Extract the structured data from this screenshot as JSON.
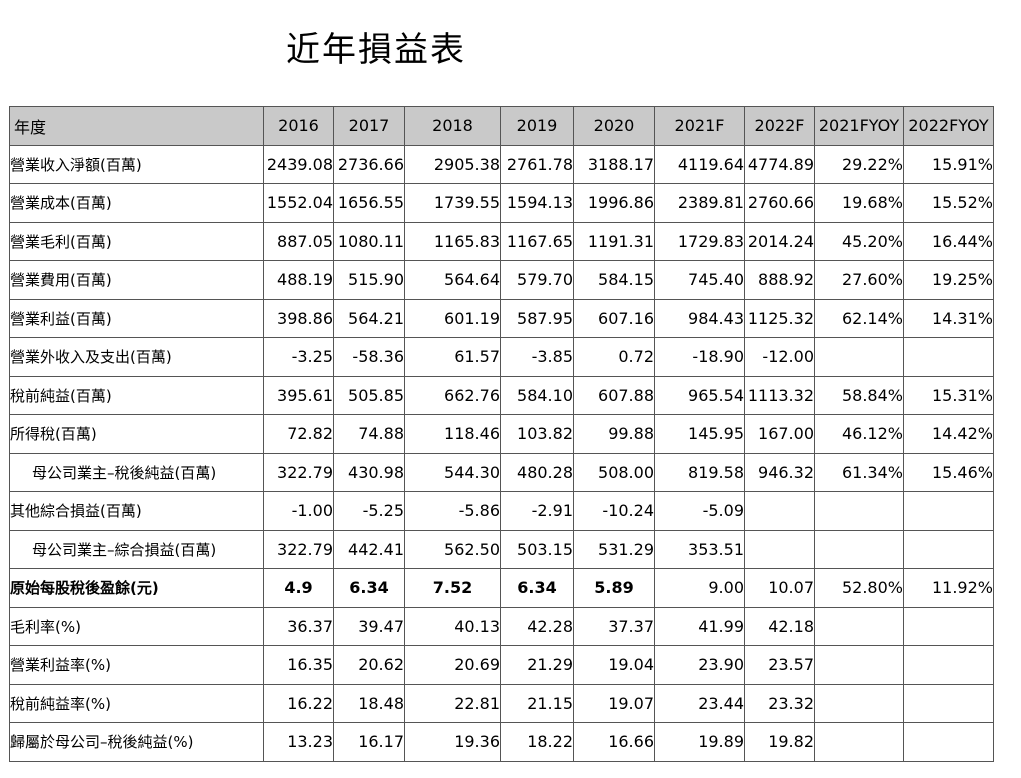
{
  "title": "近年損益表",
  "table": {
    "headers": [
      "年度",
      "2016",
      "2017",
      "2018",
      "2019",
      "2020",
      "2021F",
      "2022F",
      "2021FYOY",
      "2022FYOY"
    ],
    "rows": [
      {
        "label": "營業收入淨額(百萬)",
        "values": [
          "2439.08",
          "2736.66",
          "2905.38",
          "2761.78",
          "3188.17",
          "4119.64",
          "4774.89",
          "29.22%",
          "15.91%"
        ]
      },
      {
        "label": "營業成本(百萬)",
        "values": [
          "1552.04",
          "1656.55",
          "1739.55",
          "1594.13",
          "1996.86",
          "2389.81",
          "2760.66",
          "19.68%",
          "15.52%"
        ]
      },
      {
        "label": "營業毛利(百萬)",
        "values": [
          "887.05",
          "1080.11",
          "1165.83",
          "1167.65",
          "1191.31",
          "1729.83",
          "2014.24",
          "45.20%",
          "16.44%"
        ]
      },
      {
        "label": "營業費用(百萬)",
        "values": [
          "488.19",
          "515.90",
          "564.64",
          "579.70",
          "584.15",
          "745.40",
          "888.92",
          "27.60%",
          "19.25%"
        ]
      },
      {
        "label": "營業利益(百萬)",
        "values": [
          "398.86",
          "564.21",
          "601.19",
          "587.95",
          "607.16",
          "984.43",
          "1125.32",
          "62.14%",
          "14.31%"
        ]
      },
      {
        "label": "營業外收入及支出(百萬)",
        "values": [
          "-3.25",
          "-58.36",
          "61.57",
          "-3.85",
          "0.72",
          "-18.90",
          "-12.00",
          "",
          ""
        ]
      },
      {
        "label": "稅前純益(百萬)",
        "values": [
          "395.61",
          "505.85",
          "662.76",
          "584.10",
          "607.88",
          "965.54",
          "1113.32",
          "58.84%",
          "15.31%"
        ]
      },
      {
        "label": "所得稅(百萬)",
        "values": [
          "72.82",
          "74.88",
          "118.46",
          "103.82",
          "99.88",
          "145.95",
          "167.00",
          "46.12%",
          "14.42%"
        ]
      },
      {
        "label": "母公司業主–稅後純益(百萬)",
        "values": [
          "322.79",
          "430.98",
          "544.30",
          "480.28",
          "508.00",
          "819.58",
          "946.32",
          "61.34%",
          "15.46%"
        ]
      },
      {
        "label": "其他綜合損益(百萬)",
        "values": [
          "-1.00",
          "-5.25",
          "-5.86",
          "-2.91",
          "-10.24",
          "-5.09",
          "",
          "",
          ""
        ]
      },
      {
        "label": "母公司業主–綜合損益(百萬)",
        "values": [
          "322.79",
          "442.41",
          "562.50",
          "503.15",
          "531.29",
          "353.51",
          "",
          "",
          ""
        ]
      },
      {
        "label": "原始每股稅後盈餘(元)",
        "values": [
          "4.9",
          "6.34",
          "7.52",
          "6.34",
          "5.89",
          "9.00",
          "10.07",
          "52.80%",
          "11.92%"
        ]
      },
      {
        "label": "毛利率(%)",
        "values": [
          "36.37",
          "39.47",
          "40.13",
          "42.28",
          "37.37",
          "41.99",
          "42.18",
          "",
          ""
        ]
      },
      {
        "label": "營業利益率(%)",
        "values": [
          "16.35",
          "20.62",
          "20.69",
          "21.29",
          "19.04",
          "23.90",
          "23.57",
          "",
          ""
        ]
      },
      {
        "label": "稅前純益率(%)",
        "values": [
          "16.22",
          "18.48",
          "22.81",
          "21.15",
          "19.07",
          "23.44",
          "23.32",
          "",
          ""
        ]
      },
      {
        "label": "歸屬於母公司–稅後純益(%)",
        "values": [
          "13.23",
          "16.17",
          "19.36",
          "18.22",
          "16.66",
          "19.89",
          "19.82",
          "",
          ""
        ]
      }
    ]
  }
}
